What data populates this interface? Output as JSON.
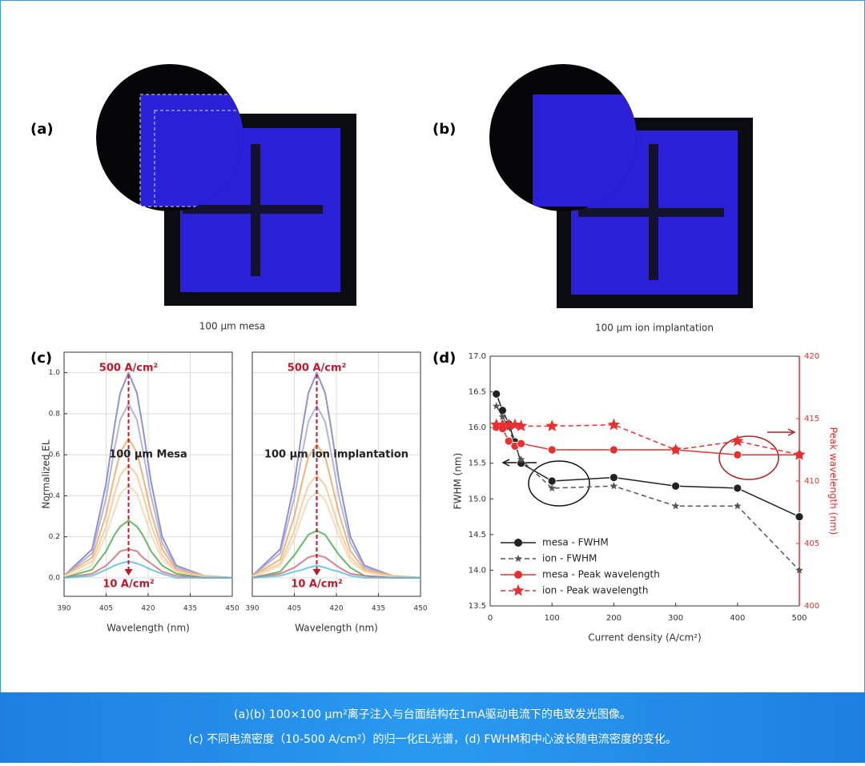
{
  "panels": {
    "a": "(a)",
    "b": "(b)",
    "c": "(c)",
    "d": "(d)"
  },
  "image_captions": [
    "100 μm mesa",
    "100 μm ion implantation"
  ],
  "caption": [
    "(a)(b) 100×100 μm²离子注入与台面结构在1mA驱动电流下的电致发光图像。",
    "(c) 不同电流密度（10-500 A/cm²）的归一化EL光谱，(d) FWHM和中心波长随电流密度的变化。"
  ],
  "chart_data": [
    {
      "type": "line",
      "xlabel": "Wavelength (nm)",
      "ylabel": "Normalized EL",
      "grid": true,
      "annotations": [
        "500 A/cm²",
        "100 μm Mesa",
        "10 A/cm²"
      ],
      "xlim": [
        390,
        450
      ],
      "xticks": [
        390,
        405,
        420,
        435,
        450
      ],
      "ylim": [
        -0.09,
        1.1
      ],
      "yticks": [
        {
          "value": 0,
          "label": "0.0"
        },
        0.2,
        0.4,
        0.6,
        0.8,
        {
          "value": 1,
          "label": "1.0"
        }
      ],
      "x": [
        390,
        400,
        405,
        408,
        410,
        413,
        416,
        418,
        421,
        425,
        430,
        440,
        450
      ],
      "series": [
        {
          "color": "#7b80c6",
          "values": [
            0.01,
            0.14,
            0.46,
            0.74,
            0.9,
            1,
            0.9,
            0.74,
            0.47,
            0.2,
            0.06,
            0.01,
            0
          ]
        },
        {
          "color": "#a6a8dc",
          "values": [
            0.01,
            0.12,
            0.39,
            0.63,
            0.77,
            0.85,
            0.77,
            0.63,
            0.4,
            0.17,
            0.05,
            0.01,
            0
          ]
        },
        {
          "color": "#f0a862",
          "values": [
            0.01,
            0.1,
            0.31,
            0.5,
            0.61,
            0.68,
            0.61,
            0.5,
            0.32,
            0.14,
            0.04,
            0.01,
            0
          ]
        },
        {
          "color": "#f4c794",
          "values": [
            0.01,
            0.08,
            0.25,
            0.41,
            0.5,
            0.55,
            0.5,
            0.41,
            0.26,
            0.11,
            0.03,
            0.01,
            0
          ]
        },
        {
          "color": "#f2d6b0",
          "values": [
            0,
            0.06,
            0.21,
            0.33,
            0.41,
            0.45,
            0.41,
            0.33,
            0.21,
            0.09,
            0.03,
            0,
            0
          ]
        },
        {
          "color": "#4caf50",
          "values": [
            0,
            0.04,
            0.13,
            0.21,
            0.25,
            0.28,
            0.25,
            0.21,
            0.13,
            0.06,
            0.02,
            0,
            0
          ]
        },
        {
          "color": "#d96a7a",
          "values": [
            0,
            0.02,
            0.06,
            0.1,
            0.13,
            0.14,
            0.13,
            0.1,
            0.07,
            0.03,
            0.01,
            0,
            0
          ]
        },
        {
          "color": "#5bc0de",
          "values": [
            0,
            0.01,
            0.04,
            0.06,
            0.07,
            0.08,
            0.07,
            0.06,
            0.04,
            0.02,
            0,
            0,
            0
          ]
        }
      ]
    },
    {
      "type": "line",
      "xlabel": "Wavelength (nm)",
      "grid": true,
      "annotations": [
        "500 A/cm²",
        "100 μm ion implantation",
        "10 A/cm²"
      ],
      "xlim": [
        390,
        450
      ],
      "xticks": [
        390,
        405,
        420,
        435,
        450
      ],
      "ylim": [
        -0.09,
        1.1
      ],
      "x": [
        390,
        400,
        405,
        408,
        410,
        413,
        416,
        418,
        421,
        425,
        430,
        440,
        450
      ],
      "series": [
        {
          "color": "#7b80c6",
          "values": [
            0.01,
            0.14,
            0.46,
            0.74,
            0.9,
            1,
            0.9,
            0.74,
            0.47,
            0.2,
            0.06,
            0.01,
            0
          ]
        },
        {
          "color": "#a6a8dc",
          "values": [
            0.01,
            0.12,
            0.39,
            0.62,
            0.76,
            0.84,
            0.76,
            0.62,
            0.39,
            0.17,
            0.05,
            0.01,
            0
          ]
        },
        {
          "color": "#f0a862",
          "values": [
            0.01,
            0.09,
            0.3,
            0.48,
            0.59,
            0.65,
            0.59,
            0.48,
            0.31,
            0.13,
            0.04,
            0.01,
            0
          ]
        },
        {
          "color": "#f4c794",
          "values": [
            0.01,
            0.07,
            0.23,
            0.37,
            0.45,
            0.5,
            0.45,
            0.37,
            0.24,
            0.1,
            0.03,
            0.01,
            0
          ]
        },
        {
          "color": "#f2d6b0",
          "values": [
            0,
            0.06,
            0.19,
            0.31,
            0.38,
            0.42,
            0.38,
            0.31,
            0.2,
            0.08,
            0.03,
            0,
            0
          ]
        },
        {
          "color": "#4caf50",
          "values": [
            0,
            0.03,
            0.11,
            0.17,
            0.21,
            0.23,
            0.21,
            0.17,
            0.11,
            0.05,
            0.01,
            0,
            0
          ]
        },
        {
          "color": "#d96a7a",
          "values": [
            0,
            0.02,
            0.05,
            0.08,
            0.1,
            0.11,
            0.1,
            0.08,
            0.05,
            0.02,
            0.01,
            0,
            0
          ]
        },
        {
          "color": "#5bc0de",
          "values": [
            0,
            0.01,
            0.03,
            0.04,
            0.05,
            0.06,
            0.05,
            0.04,
            0.03,
            0.01,
            0,
            0,
            0
          ]
        }
      ]
    },
    {
      "type": "line",
      "xlabel": "Current density (A/cm²)",
      "ylabel": "FWHM (nm)",
      "y2label": "Peak wavelength (nm)",
      "y2color": "#e83030",
      "grid": false,
      "legend": "lower left",
      "xlim": [
        0,
        500
      ],
      "xticks": [
        0,
        100,
        200,
        300,
        400,
        500
      ],
      "ylim": [
        13.5,
        17.0
      ],
      "yticks": [
        13.5,
        {
          "value": 14,
          "label": "14.0"
        },
        14.5,
        {
          "value": 15,
          "label": "15.0"
        },
        15.5,
        {
          "value": 16,
          "label": "16.0"
        },
        16.5,
        {
          "value": 17,
          "label": "17.0"
        }
      ],
      "y2lim": [
        400,
        420
      ],
      "y2ticks": [
        400,
        405,
        410,
        415,
        420
      ],
      "x": [
        10,
        20,
        30,
        40,
        50,
        100,
        200,
        300,
        400,
        500
      ],
      "series": [
        {
          "name": "mesa - FWHM",
          "color": "#222222",
          "marker": "circle",
          "linestyle": "solid",
          "values": [
            16.47,
            16.24,
            16.05,
            15.8,
            15.5,
            15.25,
            15.3,
            15.18,
            15.15,
            14.75
          ]
        },
        {
          "name": "ion - FWHM",
          "color": "#555555",
          "marker": "star",
          "linestyle": "dashed",
          "values": [
            16.3,
            16.15,
            16.0,
            15.75,
            15.55,
            15.15,
            15.18,
            14.9,
            14.9,
            14.0
          ]
        },
        {
          "name": "mesa - Peak wavelength",
          "color": "#e83030",
          "marker": "circle",
          "linestyle": "solid",
          "axis": "y2",
          "values": [
            414.3,
            414.2,
            413.2,
            412.8,
            413.0,
            412.5,
            412.5,
            412.5,
            412.1,
            412.1
          ]
        },
        {
          "name": "ion - Peak wavelength",
          "color": "#e83030",
          "marker": "star",
          "linestyle": "dashed",
          "axis": "y2",
          "values": [
            414.5,
            414.5,
            414.5,
            414.5,
            414.4,
            414.4,
            414.5,
            412.5,
            413.2,
            412.1
          ]
        }
      ]
    }
  ]
}
